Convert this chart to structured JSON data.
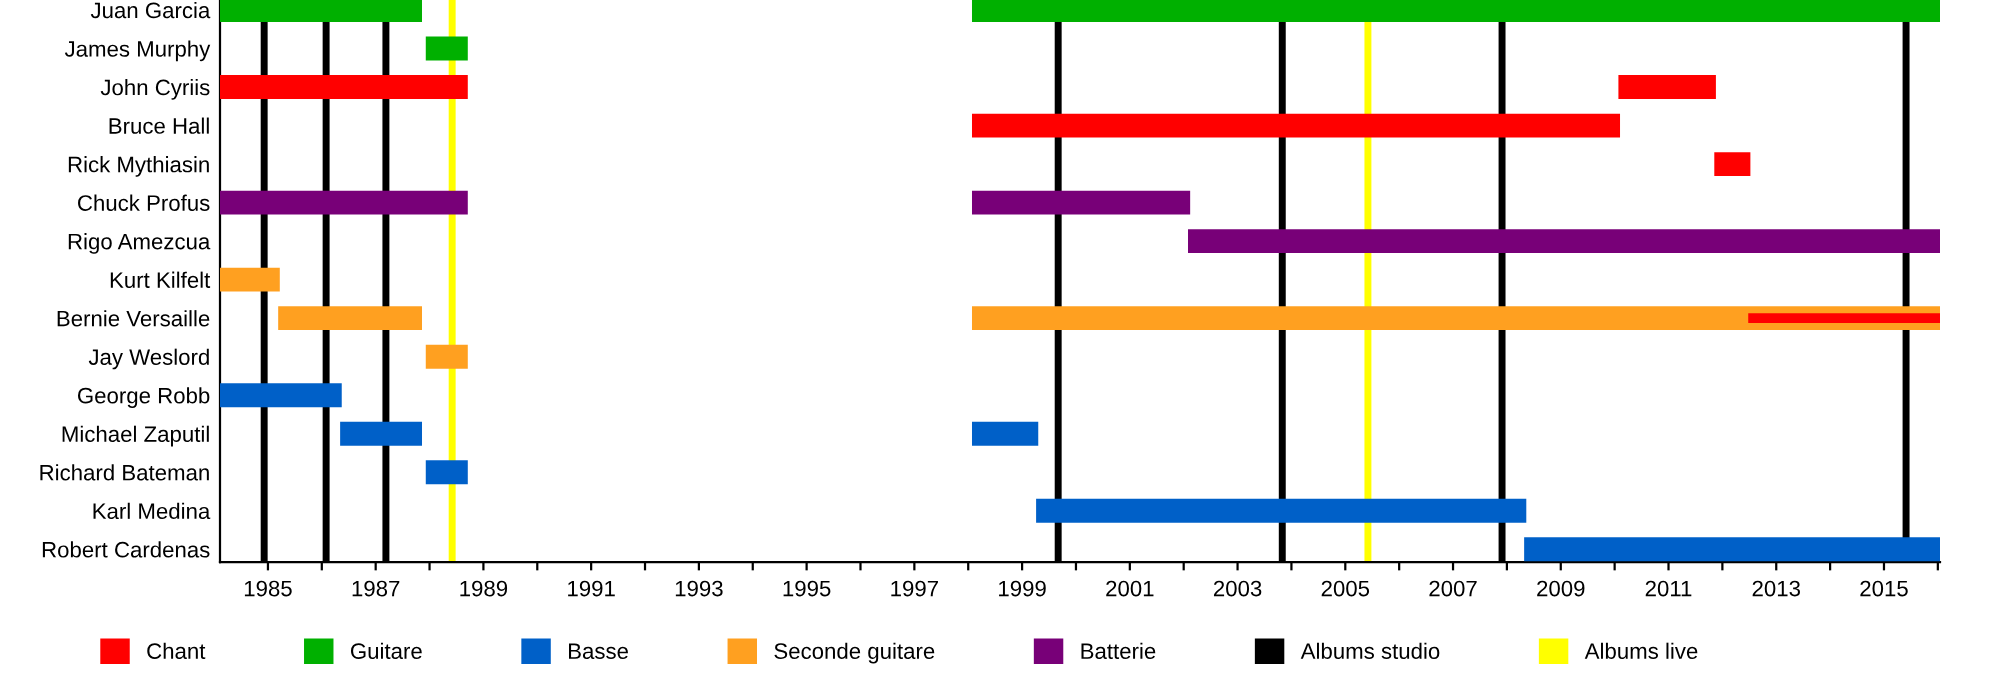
{
  "chart_data": {
    "type": "bar",
    "orientation": "horizontal",
    "categories": [
      "Juan Garcia",
      "James Murphy",
      "John Cyriis",
      "Bruce Hall",
      "Rick Mythiasin",
      "Chuck Profus",
      "Rigo Amezcua",
      "Kurt Kilfelt",
      "Bernie Versaille",
      "Jay Weslord",
      "George Robb",
      "Michael Zaputil",
      "Richard Bateman",
      "Karl Medina",
      "Robert Cardenas"
    ],
    "series": [
      {
        "name": "Chant",
        "color": "#ff0000",
        "values": [
          null,
          null,
          4.6,
          12.03,
          0.67,
          null,
          null,
          null,
          null,
          null,
          null,
          null,
          null,
          null,
          null
        ],
        "base": [
          null,
          null,
          1984.11,
          1998.07,
          2011.85,
          null,
          null,
          null,
          null,
          null,
          null,
          null,
          null,
          null,
          null
        ]
      },
      {
        "name": "Guitare",
        "color": "#00b000",
        "values": [
          3.75,
          0.78,
          null,
          null,
          null,
          null,
          null,
          null,
          null,
          null,
          null,
          null,
          null,
          null,
          null
        ],
        "base": [
          1984.11,
          1987.93,
          null,
          null,
          null,
          null,
          null,
          null,
          null,
          null,
          null,
          null,
          null,
          null,
          null
        ]
      },
      {
        "name": "Basse",
        "color": "#0060c8",
        "values": [
          null,
          null,
          null,
          null,
          null,
          null,
          null,
          null,
          null,
          null,
          2.26,
          1.52,
          0.78,
          9.1,
          7.72
        ],
        "base": [
          null,
          null,
          null,
          null,
          null,
          null,
          null,
          null,
          null,
          null,
          1984.11,
          1986.34,
          1987.93,
          1999.26,
          2008.32
        ]
      },
      {
        "name": "Seconde guitare",
        "color": "#ffa020",
        "values": [
          null,
          null,
          null,
          null,
          null,
          null,
          null,
          1.11,
          2.67,
          0.78,
          null,
          null,
          null,
          null,
          null
        ],
        "base": [
          null,
          null,
          null,
          null,
          null,
          null,
          null,
          1984.11,
          1985.19,
          1987.93,
          null,
          null,
          null,
          null,
          null
        ]
      },
      {
        "name": "Batterie",
        "color": "#780078",
        "values": [
          null,
          null,
          null,
          null,
          null,
          4.6,
          13.96,
          null,
          null,
          null,
          null,
          null,
          null,
          null,
          null
        ],
        "base": [
          null,
          null,
          null,
          null,
          null,
          1984.11,
          2002.08,
          null,
          null,
          null,
          null,
          null,
          null,
          null,
          null
        ]
      },
      {
        "color": "#ff0000",
        "values": [
          null,
          null,
          1.81,
          null,
          null,
          null,
          null,
          null,
          null,
          null,
          null,
          null,
          null,
          null,
          null
        ],
        "base": [
          null,
          null,
          2010.07,
          null,
          null,
          null,
          null,
          null,
          null,
          null,
          null,
          null,
          null,
          null,
          null
        ]
      },
      {
        "color": "#00b000",
        "values": [
          17.97,
          null,
          null,
          null,
          null,
          null,
          null,
          null,
          null,
          null,
          null,
          null,
          null,
          null,
          null
        ],
        "base": [
          1998.07,
          null,
          null,
          null,
          null,
          null,
          null,
          null,
          null,
          null,
          null,
          null,
          null,
          null,
          null
        ]
      },
      {
        "color": "#0060c8",
        "values": [
          null,
          null,
          null,
          null,
          null,
          null,
          null,
          null,
          null,
          null,
          null,
          1.23,
          null,
          null,
          null
        ],
        "base": [
          null,
          null,
          null,
          null,
          null,
          null,
          null,
          null,
          null,
          null,
          null,
          1998.07,
          null,
          null,
          null
        ]
      },
      {
        "color": "#ffa020",
        "values": [
          null,
          null,
          null,
          null,
          null,
          null,
          null,
          null,
          17.97,
          null,
          null,
          null,
          null,
          null,
          null
        ],
        "base": [
          null,
          null,
          null,
          null,
          null,
          null,
          null,
          null,
          1998.07,
          null,
          null,
          null,
          null,
          null,
          null
        ]
      },
      {
        "color": "#780078",
        "values": [
          null,
          null,
          null,
          null,
          null,
          4.05,
          null,
          null,
          null,
          null,
          null,
          null,
          null,
          null,
          null
        ],
        "base": [
          null,
          null,
          null,
          null,
          null,
          1998.07,
          null,
          null,
          null,
          null,
          null,
          null,
          null,
          null,
          null
        ]
      },
      {
        "color": "#ff0000",
        "values": [
          null,
          null,
          null,
          null,
          null,
          null,
          null,
          null,
          3.56,
          null,
          null,
          null,
          null,
          null,
          null
        ],
        "base": [
          null,
          null,
          null,
          null,
          null,
          null,
          null,
          null,
          2012.48,
          null,
          null,
          null,
          null,
          null,
          null
        ]
      }
    ],
    "xlim": [
      1984.11,
      2016.04
    ],
    "xticks": [
      1985,
      {
        "value": 1986,
        "label": null
      },
      1987,
      {
        "value": 1988,
        "label": null
      },
      1989,
      {
        "value": 1990,
        "label": null
      },
      1991,
      {
        "value": 1992,
        "label": null
      },
      1993,
      {
        "value": 1994,
        "label": null
      },
      1995,
      {
        "value": 1996,
        "label": null
      },
      1997,
      {
        "value": 1998,
        "label": null
      },
      1999,
      {
        "value": 2000,
        "label": null
      },
      2001,
      {
        "value": 2002,
        "label": null
      },
      2003,
      {
        "value": 2004,
        "label": null
      },
      2005,
      {
        "value": 2006,
        "label": null
      },
      2007,
      {
        "value": 2008,
        "label": null
      },
      2009,
      {
        "value": 2010,
        "label": null
      },
      2011,
      {
        "value": 2012,
        "label": null
      },
      2013,
      {
        "value": 2014,
        "label": null
      },
      2015,
      {
        "value": 2016,
        "label": null
      }
    ],
    "ref_lines": [
      {
        "axis": "x",
        "value": 1984.93,
        "label": "Albums studio",
        "color": "#000000"
      },
      {
        "axis": "x",
        "value": 1986.08,
        "color": "#000000"
      },
      {
        "axis": "x",
        "value": 1987.19,
        "color": "#000000"
      },
      {
        "axis": "x",
        "value": 1999.67,
        "color": "#000000"
      },
      {
        "axis": "x",
        "value": 2003.83,
        "color": "#000000"
      },
      {
        "axis": "x",
        "value": 2007.91,
        "color": "#000000"
      },
      {
        "axis": "x",
        "value": 2015.41,
        "color": "#000000"
      },
      {
        "axis": "x",
        "value": 1988.42,
        "label": "Albums live",
        "color": "#ffff00"
      },
      {
        "axis": "x",
        "value": 2005.42,
        "color": "#ffff00"
      }
    ],
    "grid": false,
    "legend": "bottom"
  }
}
